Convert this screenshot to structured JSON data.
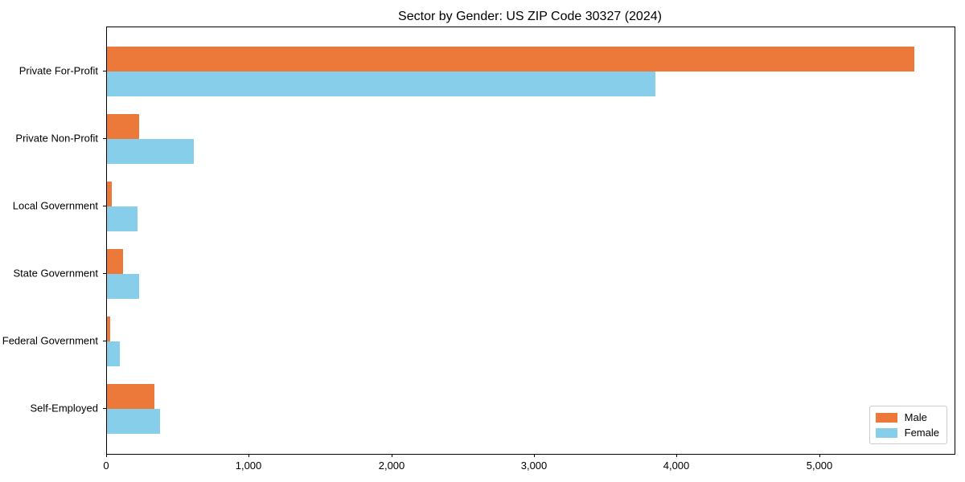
{
  "title": "Sector by Gender: US ZIP Code 30327 (2024)",
  "colors": {
    "male": "#EC7839",
    "female": "#87CEEB",
    "axis": "#000000",
    "legend_border": "#cccccc"
  },
  "legend": {
    "position": "lower right",
    "items": [
      {
        "label": "Male",
        "color_key": "male"
      },
      {
        "label": "Female",
        "color_key": "female"
      }
    ]
  },
  "x_axis": {
    "tick_values": [
      0,
      1000,
      2000,
      3000,
      4000,
      5000
    ],
    "tick_labels": [
      "0",
      "1,000",
      "2,000",
      "3,000",
      "4,000",
      "5,000"
    ]
  },
  "chart_data": {
    "type": "bar",
    "orientation": "horizontal",
    "title": "Sector by Gender: US ZIP Code 30327 (2024)",
    "categories": [
      "Private For-Profit",
      "Private Non-Profit",
      "Local Government",
      "State Government",
      "Federal Government",
      "Self-Employed"
    ],
    "series": [
      {
        "name": "Male",
        "color": "#EC7839",
        "values": [
          5660,
          225,
          35,
          110,
          25,
          335
        ]
      },
      {
        "name": "Female",
        "color": "#87CEEB",
        "values": [
          3845,
          610,
          215,
          225,
          90,
          370
        ]
      }
    ],
    "xlabel": "",
    "ylabel": "",
    "xlim": [
      0,
      5943
    ],
    "grid": false,
    "legend_position": "lower right"
  }
}
